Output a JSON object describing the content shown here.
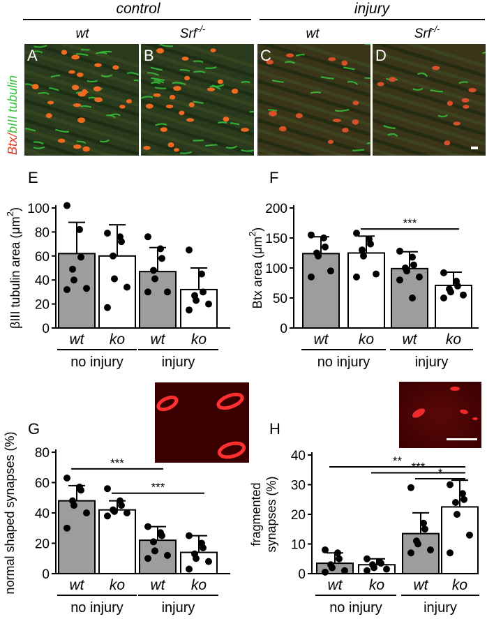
{
  "header": {
    "control": "control",
    "injury": "injury",
    "wt": "wt",
    "srf": "Srf",
    "srf_sup": "-/-",
    "side_btx": "Btx/",
    "side_tub": "bIII tubulin"
  },
  "micro_panels": [
    {
      "letter": "A",
      "density": 1.0
    },
    {
      "letter": "B",
      "density": 1.0
    },
    {
      "letter": "C",
      "density": 0.5
    },
    {
      "letter": "D",
      "density": 0.35
    }
  ],
  "colors": {
    "gray_bar": "#9d9d9d",
    "white_bar": "#ffffff",
    "green": "#35c23b",
    "red": "#e23a1c",
    "muscle": "#2a3a1c"
  },
  "chart_data": [
    {
      "panel": "E",
      "type": "bar",
      "ylabel_prefix": "βIII tubulin area (μm",
      "ylabel_sup": "2",
      "ylim": [
        0,
        100
      ],
      "yticks": [
        0,
        20,
        40,
        60,
        80,
        100
      ],
      "categories": [
        "wt",
        "ko",
        "wt",
        "ko"
      ],
      "groups": [
        "no injury",
        "injury"
      ],
      "values": [
        62,
        60,
        47,
        32
      ],
      "err": [
        26,
        26,
        20,
        18
      ],
      "points": [
        [
          102,
          82,
          59,
          49,
          40,
          33,
          32
        ],
        [
          79,
          76,
          72,
          60,
          41,
          34,
          17
        ],
        [
          76,
          66,
          58,
          48,
          41,
          30,
          30
        ],
        [
          65,
          45,
          30,
          27,
          23,
          20,
          15
        ]
      ],
      "sig": []
    },
    {
      "panel": "F",
      "type": "bar",
      "ylabel_prefix": "Btx area (μm",
      "ylabel_sup": "2",
      "ylim": [
        0,
        200
      ],
      "yticks": [
        0,
        50,
        100,
        150,
        200
      ],
      "categories": [
        "wt",
        "ko",
        "wt",
        "ko"
      ],
      "groups": [
        "no injury",
        "injury"
      ],
      "values": [
        124,
        125,
        99,
        71
      ],
      "err": [
        28,
        28,
        28,
        22
      ],
      "points": [
        [
          155,
          150,
          135,
          125,
          120,
          95,
          85
        ],
        [
          158,
          148,
          140,
          130,
          120,
          90,
          85
        ],
        [
          128,
          118,
          105,
          100,
          95,
          85,
          80,
          50
        ],
        [
          92,
          78,
          70,
          65,
          60,
          55,
          50
        ]
      ],
      "sig": [
        {
          "from": 1,
          "to": 3,
          "y": 165,
          "label": "***"
        }
      ]
    },
    {
      "panel": "G",
      "type": "bar",
      "ylabel_prefix": "normal shaped synapses (%)",
      "ylabel_sup": "",
      "ylim": [
        0,
        80
      ],
      "yticks": [
        0,
        20,
        40,
        60,
        80
      ],
      "categories": [
        "wt",
        "ko",
        "wt",
        "ko"
      ],
      "groups": [
        "no injury",
        "injury"
      ],
      "values": [
        48,
        42,
        22,
        14
      ],
      "err": [
        10,
        6,
        9,
        11
      ],
      "points": [
        [
          63,
          57,
          55,
          48,
          45,
          40,
          30
        ],
        [
          56,
          48,
          45,
          42,
          41,
          40,
          38
        ],
        [
          31,
          27,
          25,
          21,
          15,
          12,
          10
        ],
        [
          25,
          20,
          17,
          13,
          10,
          8,
          3
        ]
      ],
      "sig": [
        {
          "from": 0,
          "to": 2,
          "y": 69,
          "label": "***"
        },
        {
          "from": 1,
          "to": 3,
          "y": 53,
          "label": "***"
        }
      ]
    },
    {
      "panel": "H",
      "type": "bar",
      "ylabel_prefix": "fragmented synapses (%)",
      "ylabel_sup": "",
      "ylim": [
        0,
        40
      ],
      "yticks": [
        0,
        10,
        20,
        30,
        40
      ],
      "categories": [
        "wt",
        "ko",
        "wt",
        "ko"
      ],
      "groups": [
        "no injury",
        "injury"
      ],
      "values": [
        3.5,
        3,
        13.5,
        22.5
      ],
      "err": [
        3.5,
        2,
        7,
        9
      ],
      "points": [
        [
          8,
          7,
          5,
          3,
          2,
          1,
          0.5
        ],
        [
          5,
          4,
          3.5,
          3,
          2,
          1.5,
          1
        ],
        [
          29,
          17,
          15,
          11,
          10,
          8,
          7
        ],
        [
          30,
          27,
          25,
          24,
          20,
          13,
          7
        ]
      ],
      "sig": [
        {
          "from": 0,
          "to": 3,
          "y": 36,
          "label": "**"
        },
        {
          "from": 1,
          "to": 3,
          "y": 34,
          "label": "***"
        },
        {
          "from": 2,
          "to": 3,
          "y": 32,
          "label": "*"
        }
      ]
    }
  ]
}
